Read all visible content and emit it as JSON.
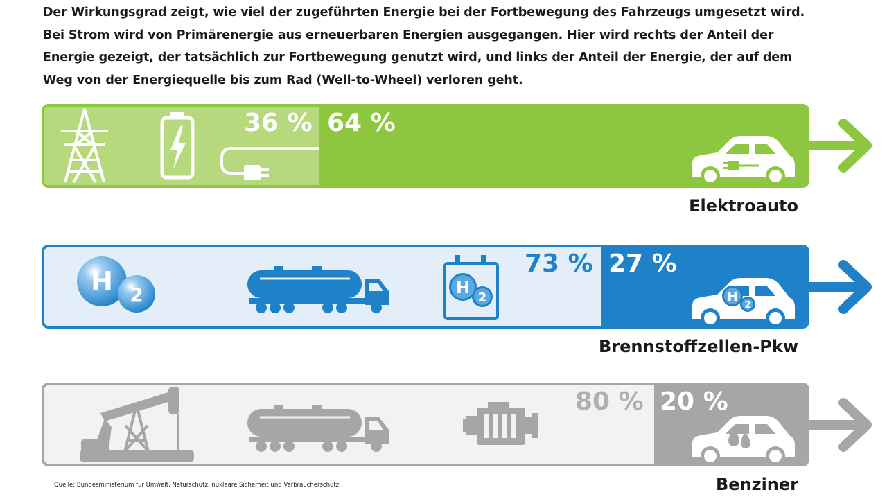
{
  "intro_text": "Der Wirkungsgrad zeigt, wie viel der zugeführten Energie bei der Fortbewegung des Fahrzeugs umgesetzt wird. Bei Strom wird von Primärenergie aus erneuerbaren Energien ausgegangen. Hier wird rechts der Anteil der Energie gezeigt, der tatsächlich zur Fortbewegung genutzt wird, und links der Anteil der Energie, der auf dem Weg von der Energiequelle bis zum Rad (Well-to-Wheel) verloren geht.",
  "source": "Quelle: Bundesministerium für Umwelt, Naturschutz, nukleare Sicherheit und Verbraucherschutz",
  "rows": [
    {
      "vehicle": "Elektroauto",
      "loss_label": "36 %",
      "used_label": "64 %",
      "colors": {
        "border": "#8dc63f",
        "light": "#b6d97d",
        "dark": "#8dc63f",
        "icon": "#ffffff",
        "loss_text": "#ffffff"
      },
      "icons": [
        "power-pylon-icon",
        "battery-icon",
        "plug-icon",
        "electric-car-icon"
      ]
    },
    {
      "vehicle": "Brennstoffzellen-Pkw",
      "loss_label": "73 %",
      "used_label": "27 %",
      "colors": {
        "border": "#1f82c8",
        "light": "#e3eef8",
        "dark": "#1f82c8",
        "icon": "#1f82c8",
        "loss_text": "#1f82c8"
      },
      "icons": [
        "hydrogen-molecule-icon",
        "tanker-truck-icon",
        "hydrogen-tank-icon",
        "hydrogen-car-icon"
      ]
    },
    {
      "vehicle": "Benziner",
      "loss_label": "80 %",
      "used_label": "20 %",
      "colors": {
        "border": "#a6a6a6",
        "light": "#f2f2f2",
        "dark": "#a6a6a6",
        "icon": "#a6a6a6",
        "loss_text": "#b0b0b0"
      },
      "icons": [
        "oil-pump-icon",
        "tanker-truck-icon",
        "engine-icon",
        "fuel-car-icon"
      ]
    }
  ],
  "chart_data": {
    "type": "bar",
    "categories": [
      "Elektroauto",
      "Brennstoffzellen-Pkw",
      "Benziner"
    ],
    "series": [
      {
        "values": [
          36,
          73,
          80
        ]
      },
      {
        "values": [
          64,
          27,
          20
        ]
      }
    ],
    "unit": "%",
    "stacked": true,
    "orientation": "horizontal"
  }
}
